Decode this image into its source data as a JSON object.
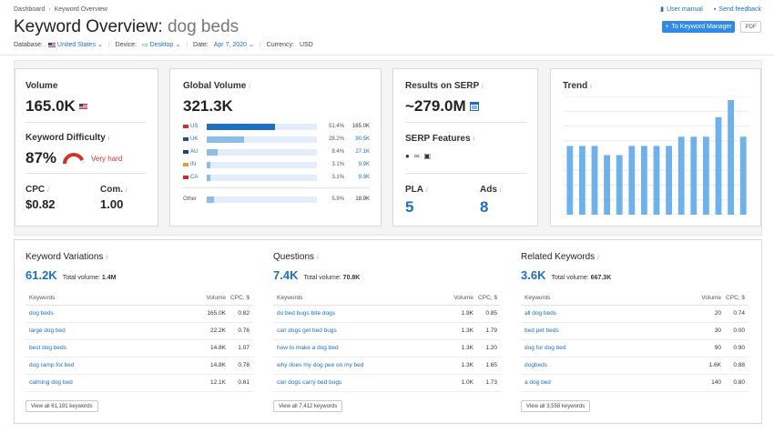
{
  "breadcrumb": [
    "Dashboard",
    "Keyword Overview"
  ],
  "top_links": {
    "manual": "User manual",
    "feedback": "Send feedback"
  },
  "title": {
    "prefix": "Keyword Overview:",
    "keyword": "dog beds"
  },
  "filters": {
    "database_label": "Database:",
    "database_value": "United States",
    "device_label": "Device:",
    "device_value": "Desktop",
    "date_label": "Date:",
    "date_value": "Apr 7, 2020",
    "currency_label": "Currency:",
    "currency_value": "USD"
  },
  "actions": {
    "keyword_manager": "To Keyword Manager",
    "pdf": "PDF"
  },
  "volume": {
    "label": "Volume",
    "value": "165.0K"
  },
  "difficulty": {
    "label": "Keyword Difficulty",
    "value": "87%",
    "level": "Very hard",
    "gauge_fraction": 0.87
  },
  "cpc": {
    "label": "CPC",
    "value": "$0.82"
  },
  "com": {
    "label": "Com.",
    "value": "1.00"
  },
  "global_volume": {
    "label": "Global Volume",
    "value": "321.3K",
    "rows": [
      {
        "cc": "US",
        "pct": "51.4%",
        "vol": "165.0K",
        "share": 0.514,
        "active": true
      },
      {
        "cc": "UK",
        "pct": "28.2%",
        "vol": "90.5K",
        "share": 0.282,
        "active": false
      },
      {
        "cc": "AU",
        "pct": "8.4%",
        "vol": "27.1K",
        "share": 0.084,
        "active": false
      },
      {
        "cc": "IN",
        "pct": "3.1%",
        "vol": "9.9K",
        "share": 0.031,
        "active": false
      },
      {
        "cc": "CA",
        "pct": "3.1%",
        "vol": "9.9K",
        "share": 0.031,
        "active": false
      }
    ],
    "other": {
      "cc": "Other",
      "pct": "5.9%",
      "vol": "18.9K",
      "share": 0.059
    }
  },
  "serp": {
    "label": "Results on SERP",
    "value": "~279.0M",
    "features_label": "SERP Features"
  },
  "pla": {
    "label": "PLA",
    "value": "5"
  },
  "ads": {
    "label": "Ads",
    "value": "8"
  },
  "trend": {
    "label": "Trend",
    "values": [
      0.6,
      0.6,
      0.6,
      0.52,
      0.52,
      0.6,
      0.6,
      0.6,
      0.6,
      0.68,
      0.68,
      0.68,
      0.85,
      1.0,
      0.68
    ]
  },
  "variations": {
    "title": "Keyword Variations",
    "count": "61.2K",
    "total_label": "Total volume:",
    "total": "1.4M",
    "headers": [
      "Keywords",
      "Volume",
      "CPC, $"
    ],
    "rows": [
      [
        "dog beds",
        "165.0K",
        "0.82"
      ],
      [
        "large dog bed",
        "22.2K",
        "0.76"
      ],
      [
        "best dog beds",
        "14.8K",
        "1.07"
      ],
      [
        "dog ramp for bed",
        "14.8K",
        "0.78"
      ],
      [
        "calming dog bed",
        "12.1K",
        "0.61"
      ]
    ],
    "view_all": "View all 61,191 keywords"
  },
  "questions": {
    "title": "Questions",
    "count": "7.4K",
    "total_label": "Total volume:",
    "total": "70.8K",
    "headers": [
      "Keywords",
      "Volume",
      "CPC, $"
    ],
    "rows": [
      [
        "do bed bugs bite dogs",
        "1.9K",
        "0.85"
      ],
      [
        "can dogs get bed bugs",
        "1.3K",
        "1.79"
      ],
      [
        "how to make a dog bed",
        "1.3K",
        "1.20"
      ],
      [
        "why does my dog pee on my bed",
        "1.3K",
        "1.65"
      ],
      [
        "can dogs carry bed bugs",
        "1.0K",
        "1.73"
      ]
    ],
    "view_all": "View all 7,412 keywords"
  },
  "related": {
    "title": "Related Keywords",
    "count": "3.6K",
    "total_label": "Total volume:",
    "total": "667.3K",
    "headers": [
      "Keywords",
      "Volume",
      "CPC, $"
    ],
    "rows": [
      [
        "all dog beds",
        "20",
        "0.74"
      ],
      [
        "bed pet beds",
        "30",
        "0.00"
      ],
      [
        "dog for dog bed",
        "90",
        "0.90"
      ],
      [
        "dogbeds",
        "1.6K",
        "0.88"
      ],
      [
        "a dog bed",
        "140",
        "0.80"
      ]
    ],
    "view_all": "View all 3,558 keywords"
  },
  "colors": {
    "accent": "#1f6fc1",
    "bar_active": "#1f6fc1",
    "bar": "#8bbcea",
    "trend": "#6fb1ea",
    "danger": "#d0342c"
  }
}
